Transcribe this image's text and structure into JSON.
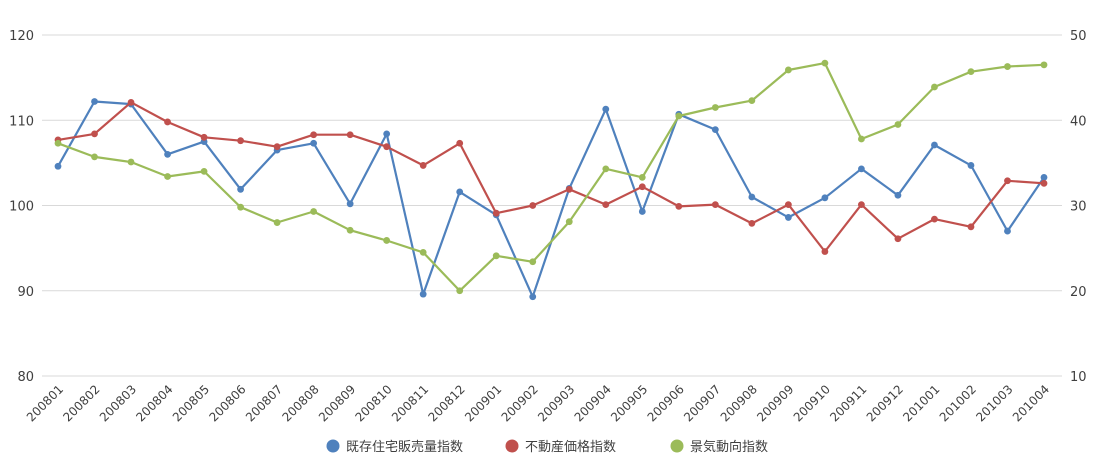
{
  "chart_data": {
    "type": "line",
    "title": "",
    "categories": [
      "200801",
      "200802",
      "200803",
      "200804",
      "200805",
      "200806",
      "200807",
      "200808",
      "200809",
      "200810",
      "200811",
      "200812",
      "200901",
      "200902",
      "200903",
      "200904",
      "200905",
      "200906",
      "200907",
      "200908",
      "200909",
      "200910",
      "200911",
      "200912",
      "201001",
      "201002",
      "201003",
      "201004"
    ],
    "y_left": {
      "ticks": [
        80,
        90,
        100,
        110,
        120
      ],
      "range": [
        80,
        120
      ]
    },
    "y_right": {
      "ticks": [
        10,
        20,
        30,
        40,
        50
      ],
      "range": [
        10,
        50
      ]
    },
    "grid": true,
    "legend_position": "bottom",
    "series": [
      {
        "name": "既存住宅販売量指数",
        "axis": "left",
        "color": "#4f81bd",
        "values": [
          104.6,
          112.2,
          111.9,
          106.0,
          107.5,
          101.9,
          106.5,
          107.3,
          100.2,
          108.4,
          89.6,
          101.6,
          98.9,
          89.3,
          102.0,
          111.3,
          99.3,
          110.7,
          108.9,
          101.0,
          98.6,
          100.9,
          104.3,
          101.2,
          107.1,
          104.7,
          97.0,
          103.3
        ]
      },
      {
        "name": "不動産価格指数",
        "axis": "left",
        "color": "#c0504d",
        "values": [
          107.7,
          108.4,
          112.1,
          109.8,
          108.0,
          107.6,
          106.9,
          108.3,
          108.3,
          106.9,
          104.7,
          107.3,
          99.1,
          100.0,
          101.9,
          100.1,
          102.2,
          99.9,
          100.1,
          97.9,
          100.1,
          94.6,
          100.1,
          96.1,
          98.4,
          97.5,
          102.9,
          102.6
        ]
      },
      {
        "name": "景気動向指数",
        "axis": "right",
        "color": "#9bbb59",
        "values": [
          37.3,
          35.7,
          35.1,
          33.4,
          34.0,
          29.8,
          28.0,
          29.3,
          27.1,
          25.9,
          24.5,
          20.0,
          24.1,
          23.4,
          28.1,
          34.3,
          33.3,
          40.5,
          41.5,
          42.3,
          45.9,
          46.7,
          37.8,
          39.5,
          43.9,
          45.7,
          46.3,
          46.5
        ]
      }
    ]
  }
}
